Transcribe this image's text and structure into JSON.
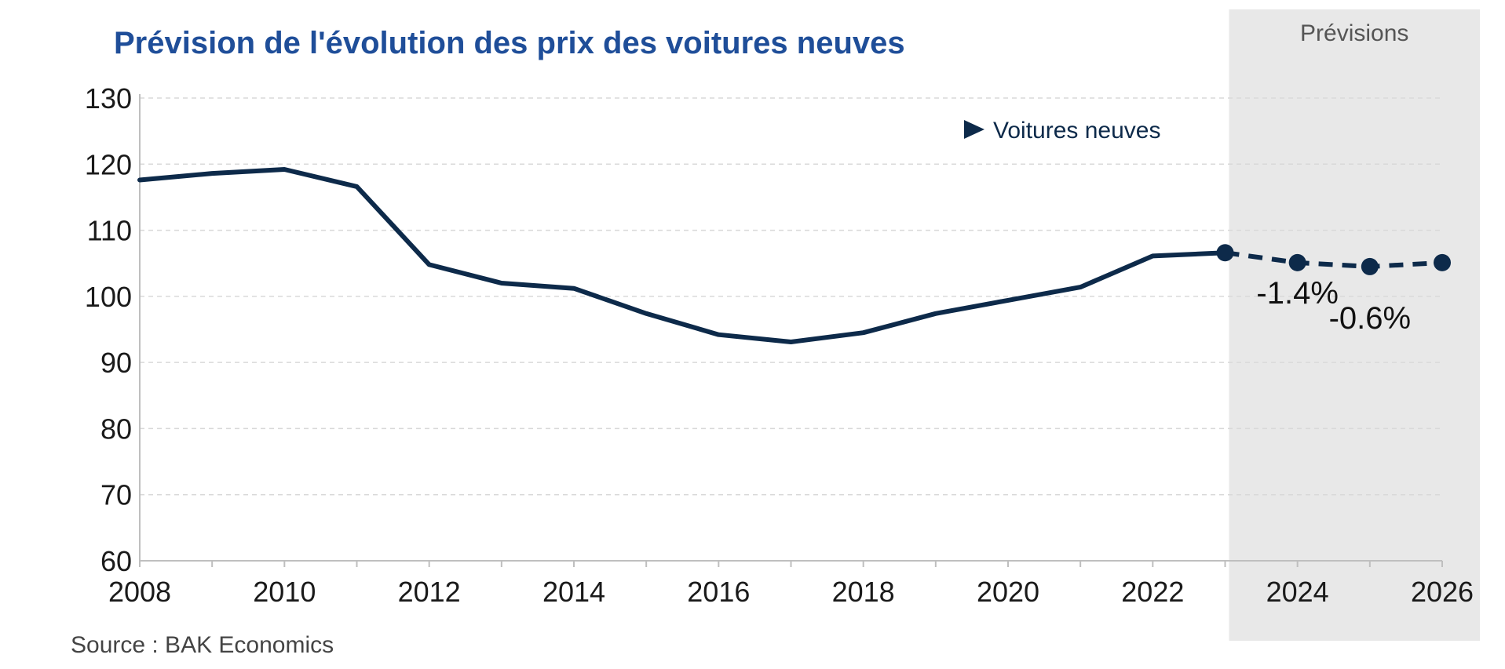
{
  "chart_data": {
    "type": "line",
    "title": "Prévision de l'évolution des prix des voitures neuves",
    "source": "Source : BAK Economics",
    "forecast_label": "Prévisions",
    "forecast_from": 2023,
    "xlim": [
      2008,
      2026
    ],
    "ylim": [
      60,
      130
    ],
    "x_ticks": [
      2008,
      2010,
      2012,
      2014,
      2016,
      2018,
      2020,
      2022,
      2024,
      2026
    ],
    "y_ticks": [
      60,
      70,
      80,
      90,
      100,
      110,
      120,
      130
    ],
    "grid": "horizontal-dashed",
    "legend": {
      "position": "top-right",
      "marker": "triangle"
    },
    "series": [
      {
        "name": "Voitures neuves",
        "color": "#0d2a4a",
        "x": [
          2008,
          2009,
          2010,
          2011,
          2012,
          2013,
          2014,
          2015,
          2016,
          2017,
          2018,
          2019,
          2020,
          2021,
          2022,
          2023,
          2024,
          2025,
          2026
        ],
        "values": [
          117.6,
          118.6,
          119.2,
          116.6,
          104.8,
          102.0,
          101.2,
          97.4,
          94.2,
          93.1,
          94.5,
          97.4,
          99.4,
          101.4,
          106.1,
          106.6,
          105.1,
          104.5,
          105.1
        ]
      }
    ],
    "annotations": [
      {
        "text": "-1.4%",
        "x": 2024,
        "y": 98.9
      },
      {
        "text": "-0.6%",
        "x": 2025,
        "y": 95.1
      }
    ],
    "colors": {
      "title": "#1f4e99",
      "forecast_band": "#e8e8e8",
      "grid": "#d9d9d9",
      "axis": "#bfbfbf"
    }
  }
}
